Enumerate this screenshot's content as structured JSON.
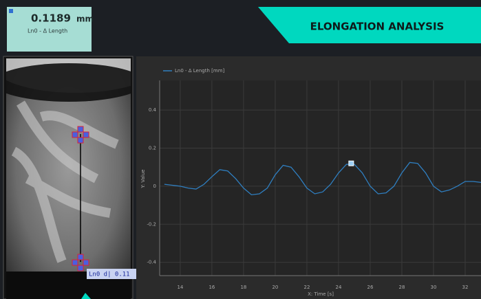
{
  "header": {
    "value": "0.1189",
    "unit": "mm",
    "label": "Ln0 - Δ Length",
    "title": "ELONGATION ANALYSIS"
  },
  "image_panel": {
    "overlay_label": "Ln0 d| 0.11"
  },
  "chart_data": {
    "type": "line",
    "xlabel": "X: Time [s]",
    "ylabel": "Y: Value",
    "x": [
      13,
      13.5,
      14,
      14.5,
      15,
      15.5,
      16,
      16.5,
      17,
      17.5,
      18,
      18.5,
      19,
      19.5,
      20,
      20.5,
      21,
      21.5,
      22,
      22.5,
      23,
      23.5,
      24,
      24.5,
      25,
      25.5,
      26,
      26.5,
      27,
      27.5,
      28,
      28.5,
      29,
      29.5,
      30,
      30.5,
      31,
      31.5,
      32,
      32.5,
      33
    ],
    "series": [
      {
        "name": "Ln0 - Δ Length [mm]",
        "color": "#2f7fc1",
        "values": [
          0.01,
          0.005,
          0.0,
          -0.01,
          -0.015,
          0.01,
          0.05,
          0.087,
          0.08,
          0.04,
          -0.01,
          -0.045,
          -0.04,
          -0.01,
          0.06,
          0.11,
          0.1,
          0.05,
          -0.01,
          -0.04,
          -0.03,
          0.01,
          0.07,
          0.115,
          0.115,
          0.07,
          0.0,
          -0.04,
          -0.035,
          0.0,
          0.07,
          0.125,
          0.12,
          0.07,
          0.0,
          -0.03,
          -0.02,
          0.0,
          0.025,
          0.025,
          0.02
        ]
      }
    ],
    "cursor": {
      "x": 24.8,
      "y": 0.12
    },
    "xlim": [
      12.7,
      33.0
    ],
    "ylim": [
      -0.47,
      0.556
    ],
    "xticks": [
      14,
      16,
      18,
      20,
      22,
      24,
      26,
      28,
      30,
      32
    ],
    "yticks": [
      -0.4,
      -0.2,
      0,
      0.2,
      0.4
    ],
    "grid": true
  }
}
